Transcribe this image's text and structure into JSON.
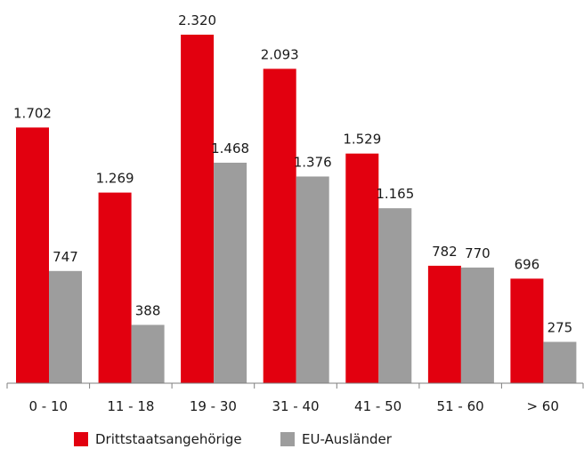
{
  "chart_data": {
    "type": "bar",
    "categories": [
      "0 - 10",
      "11 - 18",
      "19 - 30",
      "31 - 40",
      "41 - 50",
      "51 - 60",
      "> 60"
    ],
    "series": [
      {
        "name": "Drittstaatsangehörige",
        "values": [
          1702,
          1269,
          2320,
          2093,
          1529,
          782,
          696
        ],
        "labels": [
          "1.702",
          "1.269",
          "2.320",
          "2.093",
          "1.529",
          "782",
          "696"
        ],
        "color": "#e2000f"
      },
      {
        "name": "EU-Ausländer",
        "values": [
          747,
          388,
          1468,
          1376,
          1165,
          770,
          275
        ],
        "labels": [
          "747",
          "388",
          "1.468",
          "1.376",
          "1.165",
          "770",
          "275"
        ],
        "color": "#9d9d9d"
      }
    ],
    "ylim": [
      0,
      2500
    ],
    "grid": false,
    "legend_position": "bottom-center",
    "axis_color": "#7f7f7f"
  }
}
